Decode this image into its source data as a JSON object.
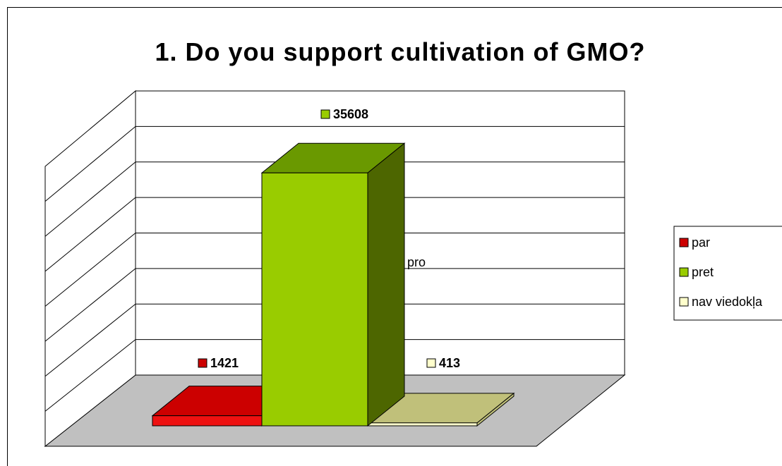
{
  "chart_data": {
    "type": "bar",
    "title": "1. Do you support cultivation of GMO?",
    "categories": [
      "pro"
    ],
    "series": [
      {
        "name": "par",
        "values": [
          1421
        ],
        "color": "#cc0000"
      },
      {
        "name": "pret",
        "values": [
          35608
        ],
        "color": "#99cc00"
      },
      {
        "name": "nav viedokļa",
        "values": [
          413
        ],
        "color": "#ffffcc"
      }
    ],
    "data_labels": [
      "1421",
      "35608",
      "413"
    ],
    "ylim": [
      0,
      40000
    ],
    "grid": true,
    "legend_position": "right",
    "style": "3d-clustered-column"
  },
  "colors": {
    "floor": "#c0c0c0",
    "wall": "#ffffff",
    "par_front": "#ee1111",
    "par_top": "#cc0000",
    "pret_front": "#99cc00",
    "pret_top": "#6a9900",
    "pret_side": "#4d6600",
    "nav_front": "#ffffcc",
    "nav_top": "#c0c07a"
  }
}
